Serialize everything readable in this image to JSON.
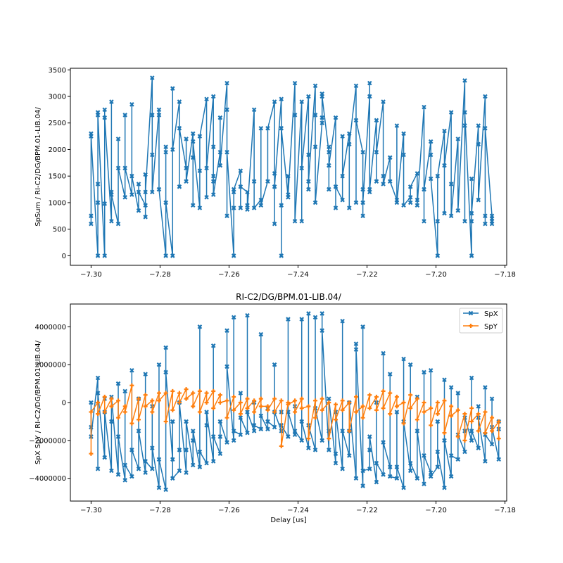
{
  "chart_data": [
    {
      "type": "line",
      "title": "",
      "xlabel": "",
      "ylabel": "SpSum / RI-C2/DG/BPM.01-LIB.04/",
      "xlim": [
        -7.306,
        -7.1795
      ],
      "ylim": [
        -180,
        3530
      ],
      "x_ticks": [
        -7.3,
        -7.28,
        -7.26,
        -7.24,
        -7.22,
        -7.2,
        -7.18
      ],
      "x_tick_labels": [
        "−7.30",
        "−7.28",
        "−7.26",
        "−7.24",
        "−7.22",
        "−7.20",
        "−7.18"
      ],
      "y_ticks": [
        0,
        500,
        1000,
        1500,
        2000,
        2500,
        3000,
        3500
      ],
      "y_tick_labels": [
        "0",
        "500",
        "1000",
        "1500",
        "2000",
        "2500",
        "3000",
        "3500"
      ],
      "x_start": -7.3,
      "x_step": 0.00197,
      "series": [
        {
          "name": "SpSum",
          "color": "#1f77b4",
          "marker": "X",
          "groups": [
            [
              2300,
              600,
              750,
              2250
            ],
            [
              0,
              2700,
              1000,
              1350,
              2650
            ],
            [
              0,
              2750,
              980,
              2600
            ],
            [
              650,
              2900,
              1200,
              1150
            ],
            [
              600,
              2200,
              1650
            ],
            [
              1100,
              2650,
              1650
            ],
            [
              1150,
              2850,
              1500
            ],
            [
              850,
              1350,
              1200
            ],
            [
              950,
              730,
              1530,
              1200
            ],
            [
              3350,
              2650,
              1900,
              1200
            ],
            [
              2750,
              2650,
              1250
            ],
            [
              0,
              1950,
              2050,
              1000
            ],
            [
              0,
              3150,
              2000
            ],
            [
              2900,
              1300,
              2400
            ],
            [
              1650,
              2200,
              1400
            ],
            [
              2300,
              950,
              1850,
              2150
            ],
            [
              900,
              1600,
              2250
            ],
            [
              2950,
              1100,
              1650
            ],
            [
              3000,
              1500,
              2050,
              1400,
              1150
            ],
            [
              1950,
              2600,
              1700
            ],
            [
              3250,
              750,
              2750,
              1950
            ],
            [
              0,
              1200,
              900,
              1250
            ],
            [
              1600,
              900,
              1300
            ],
            [
              1200,
              950,
              870
            ],
            [
              2750,
              1400,
              900
            ],
            [
              1050,
              2400,
              950
            ],
            [
              1400,
              2400
            ],
            [
              2900,
              600,
              1550,
              1300
            ],
            [
              2950,
              0,
              950,
              2400
            ],
            [
              1100,
              1500,
              1150
            ],
            [
              3250,
              2650,
              650
            ],
            [
              2900,
              650,
              1650
            ],
            [
              3000,
              1250,
              1900,
              1400
            ],
            [
              3200,
              2650,
              2050,
              1000
            ],
            [
              2500,
              3050,
              2600,
              3000
            ],
            [
              1950,
              2050,
              1250,
              1700
            ],
            [
              2600,
              900,
              1300
            ],
            [
              1050,
              2250,
              1500
            ],
            [
              2300,
              900,
              2100
            ],
            [
              3200,
              1000,
              2550
            ],
            [
              1950,
              1250,
              750,
              1000
            ],
            [
              3000,
              3250,
              1200,
              1250
            ],
            [
              2550,
              1400,
              1950
            ],
            [
              2900,
              1500,
              1350
            ],
            [
              1850,
              1400
            ],
            [
              1050,
              2450,
              1000
            ],
            [
              2300,
              1900,
              950
            ],
            [
              1100,
              1000,
              1300
            ],
            [
              1550,
              1050,
              950
            ],
            [
              2800,
              650,
              1250
            ],
            [
              2150,
              1900,
              1450
            ],
            [
              0,
              650,
              1500
            ],
            [
              2350,
              800,
              1700
            ],
            [
              2700,
              1350,
              750
            ],
            [
              2200,
              850
            ],
            [
              3300,
              650,
              2450,
              2700
            ],
            [
              0,
              1450,
              650,
              800
            ],
            [
              2450,
              2100,
              1050
            ],
            [
              3000,
              750,
              600,
              2400
            ],
            [
              750,
              650,
              600,
              700
            ]
          ]
        }
      ]
    },
    {
      "type": "line",
      "title": "RI-C2/DG/BPM.01-LIB.04/",
      "xlabel": "Delay [us]",
      "ylabel": "SpX SpY / RI-C2/DG/BPM.01-LIB.04/",
      "legend": "top-right",
      "value_multiplier": 1000000,
      "xlim": [
        -7.306,
        -7.1795
      ],
      "ylim": [
        -5200000,
        5200000
      ],
      "x_ticks": [
        -7.3,
        -7.28,
        -7.26,
        -7.24,
        -7.22,
        -7.2,
        -7.18
      ],
      "x_tick_labels": [
        "−7.30",
        "−7.28",
        "−7.26",
        "−7.24",
        "−7.22",
        "−7.20",
        "−7.18"
      ],
      "y_ticks": [
        -4000000,
        -2000000,
        0,
        2000000,
        4000000
      ],
      "y_tick_labels": [
        "−4000000",
        "−2000000",
        "0",
        "2000000",
        "4000000"
      ],
      "x_start": -7.3,
      "x_step": 0.00197,
      "series": [
        {
          "name": "SpX",
          "color": "#1f77b4",
          "marker": "X",
          "groups": [
            [
              0,
              -1.3,
              -1.8
            ],
            [
              1.3,
              -3.5,
              0.5
            ],
            [
              -2.9,
              0.2,
              -0.5
            ],
            [
              -3.6,
              -1.0,
              0.3
            ],
            [
              -3.8,
              1.0,
              -1.8
            ],
            [
              -4.1,
              0.6,
              -3.3
            ],
            [
              -3.9,
              1.7,
              -2.5
            ],
            [
              -3.5,
              0.2,
              -1.5
            ],
            [
              -3.7,
              1.5,
              -3.1
            ],
            [
              -3.5,
              -0.2,
              -2.4
            ],
            [
              -4.5,
              2.0,
              -3.0
            ],
            [
              -4.6,
              2.9,
              1.6
            ],
            [
              -3.0,
              -1.0,
              -4.0
            ],
            [
              -3.6,
              -2.5,
              0.0
            ],
            [
              -3.7,
              -2.5,
              -1.0
            ],
            [
              -3.3,
              -2.0,
              -1.5
            ],
            [
              -3.4,
              4.0,
              -2.6
            ],
            [
              -3.2,
              -1.2,
              -0.5
            ],
            [
              -3.1,
              3.0,
              -1.8
            ],
            [
              -2.7,
              -1.8,
              -1.0
            ],
            [
              -2.1,
              3.8,
              1.9
            ],
            [
              -2.0,
              4.5,
              -1.5
            ],
            [
              -1.7,
              0.5,
              -0.8
            ],
            [
              -1.6,
              4.6,
              -0.5
            ],
            [
              -1.5,
              0.0,
              -1.2
            ],
            [
              -1.4,
              3.6,
              -0.7
            ],
            [
              -1.4,
              -0.3,
              -1.0
            ],
            [
              -1.3,
              2.0,
              -0.5
            ],
            [
              -1.5,
              -0.5,
              -1.2
            ],
            [
              -1.8,
              4.4,
              -0.5
            ],
            [
              -1.7,
              -0.2,
              -1.5
            ],
            [
              -2.0,
              4.4,
              -1.0
            ],
            [
              -2.4,
              4.7,
              -1.2
            ],
            [
              -2.5,
              4.5,
              -0.3
            ],
            [
              -2.0,
              4.7,
              3.8
            ],
            [
              -2.5,
              -1.5,
              0.2
            ],
            [
              -3.2,
              -2.7,
              -0.5
            ],
            [
              -3.5,
              4.3,
              -1.5
            ],
            [
              -2.8,
              -1.5,
              0.0
            ],
            [
              -4.0,
              3.1,
              2.8
            ],
            [
              -4.4,
              4.0,
              -3.6
            ],
            [
              -3.5,
              -2.5,
              -1.8
            ],
            [
              -4.2,
              0.0,
              -3.2
            ],
            [
              -3.8,
              2.6,
              -2.1
            ],
            [
              -3.4,
              1.5,
              -3.9
            ],
            [
              -4.0,
              -0.5,
              -3.4
            ],
            [
              -4.5,
              2.3,
              -1.0
            ],
            [
              -3.6,
              2.0,
              -3.2
            ],
            [
              -4.0,
              0.3,
              -1.5
            ],
            [
              -4.3,
              1.6,
              -2.8
            ],
            [
              -3.7,
              1.7,
              -3.9
            ],
            [
              -3.4,
              -1.0,
              -2.6
            ],
            [
              -4.5,
              1.2,
              -2.0
            ],
            [
              -3.9,
              0.8,
              -2.8
            ],
            [
              -3.0,
              0.5,
              -1.7
            ],
            [
              -2.6,
              -1.5,
              -0.8
            ],
            [
              -2.0,
              1.3,
              -1.5
            ],
            [
              -2.4,
              -0.2,
              -0.8
            ],
            [
              -3.1,
              0.8,
              -1.7
            ],
            [
              -2.2,
              0.2,
              -1.3
            ],
            [
              -3.0,
              -1.0,
              -1.4
            ]
          ]
        },
        {
          "name": "SpY",
          "color": "#ff7f0e",
          "marker": "P",
          "groups": [
            [
              -2.7,
              -0.5
            ],
            [
              0.0,
              -0.6
            ],
            [
              0.3,
              -0.5
            ],
            [
              0.2,
              -0.2
            ],
            [
              0.1,
              -0.8
            ],
            [
              -0.2,
              -0.5
            ],
            [
              0.9,
              -1.1
            ],
            [
              0.2,
              -0.9
            ],
            [
              0.4,
              -0.2
            ],
            [
              0.1,
              -0.5
            ],
            [
              0.5,
              0.1
            ],
            [
              0.5,
              -1.0
            ],
            [
              0.6,
              -0.4
            ],
            [
              0.5,
              0.0
            ],
            [
              0.7,
              0.2
            ],
            [
              0.5,
              -0.2
            ],
            [
              0.6,
              -0.5
            ],
            [
              0.5,
              0.0
            ],
            [
              0.6,
              -0.3
            ],
            [
              0.4,
              0.0
            ],
            [
              0.1,
              -0.8
            ],
            [
              0.3,
              -0.4
            ],
            [
              0.0,
              -0.6
            ],
            [
              0.2,
              -0.3
            ],
            [
              0.1,
              -0.5
            ],
            [
              0.2,
              -0.2
            ],
            [
              -0.2,
              -0.4
            ],
            [
              0.2,
              -0.5
            ],
            [
              0.1,
              -2.3
            ],
            [
              0.0,
              -0.1
            ],
            [
              0.1,
              -0.5
            ],
            [
              0.2,
              -0.3
            ],
            [
              -0.2,
              -1.9
            ],
            [
              0.1,
              -0.8
            ],
            [
              0.2,
              -0.4
            ],
            [
              0.0,
              -1.9
            ],
            [
              -0.1,
              -0.9
            ],
            [
              0.1,
              -0.4
            ],
            [
              0.0,
              -1.5
            ],
            [
              0.3,
              -0.5
            ],
            [
              -0.2,
              -0.8
            ],
            [
              0.4,
              -0.3
            ],
            [
              0.3,
              -0.4
            ],
            [
              0.6,
              -0.3
            ],
            [
              0.5,
              -0.6
            ],
            [
              0.3,
              -0.2
            ],
            [
              0.0,
              -1.1
            ],
            [
              0.4,
              -0.3
            ],
            [
              0.2,
              -0.9
            ],
            [
              0.0,
              -0.5
            ],
            [
              -0.3,
              -1.2
            ],
            [
              0.0,
              -0.6
            ],
            [
              0.1,
              -1.6
            ],
            [
              -0.2,
              -0.7
            ],
            [
              -0.4,
              -1.8
            ],
            [
              -0.6,
              -2.0
            ],
            [
              -0.3,
              -1.0
            ],
            [
              -0.6,
              -1.5
            ],
            [
              -0.5,
              -1.6
            ],
            [
              -0.8,
              -1.5
            ],
            [
              -1.0,
              -1.9
            ]
          ]
        }
      ]
    }
  ]
}
